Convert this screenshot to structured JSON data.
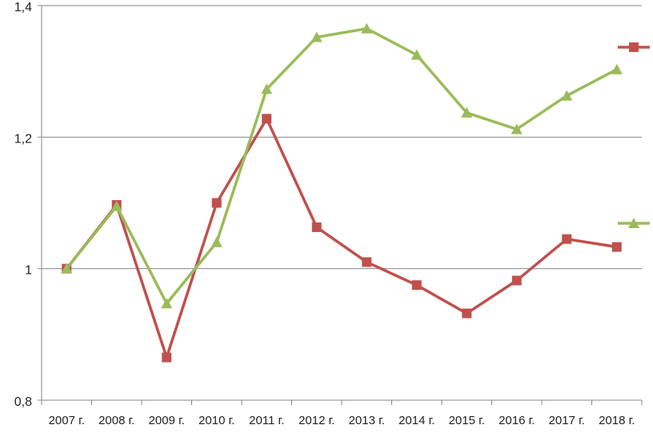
{
  "chart_data": {
    "type": "line",
    "title": "",
    "xlabel": "",
    "ylabel": "",
    "categories": [
      "2007 г.",
      "2008 г.",
      "2009 г.",
      "2010 г.",
      "2011 г.",
      "2012 г.",
      "2013 г.",
      "2014 г.",
      "2015 г.",
      "2016 г.",
      "2017 г.",
      "2018 г."
    ],
    "ylim": [
      0.8,
      1.4
    ],
    "yticks": [
      0.8,
      1.0,
      1.2,
      1.4
    ],
    "ytick_labels": [
      "0,8",
      "1",
      "1,2",
      "1,4"
    ],
    "grid": true,
    "legend": "right",
    "series": [
      {
        "marker": "square",
        "color": "#c0504d",
        "values": [
          1.0,
          1.097,
          0.865,
          1.1,
          1.228,
          1.063,
          1.01,
          0.975,
          0.932,
          0.982,
          1.045,
          1.033
        ]
      },
      {
        "marker": "triangle",
        "color": "#9bbb59",
        "values": [
          1.0,
          1.095,
          0.947,
          1.04,
          1.273,
          1.352,
          1.365,
          1.325,
          1.237,
          1.212,
          1.263,
          1.303
        ]
      }
    ]
  }
}
